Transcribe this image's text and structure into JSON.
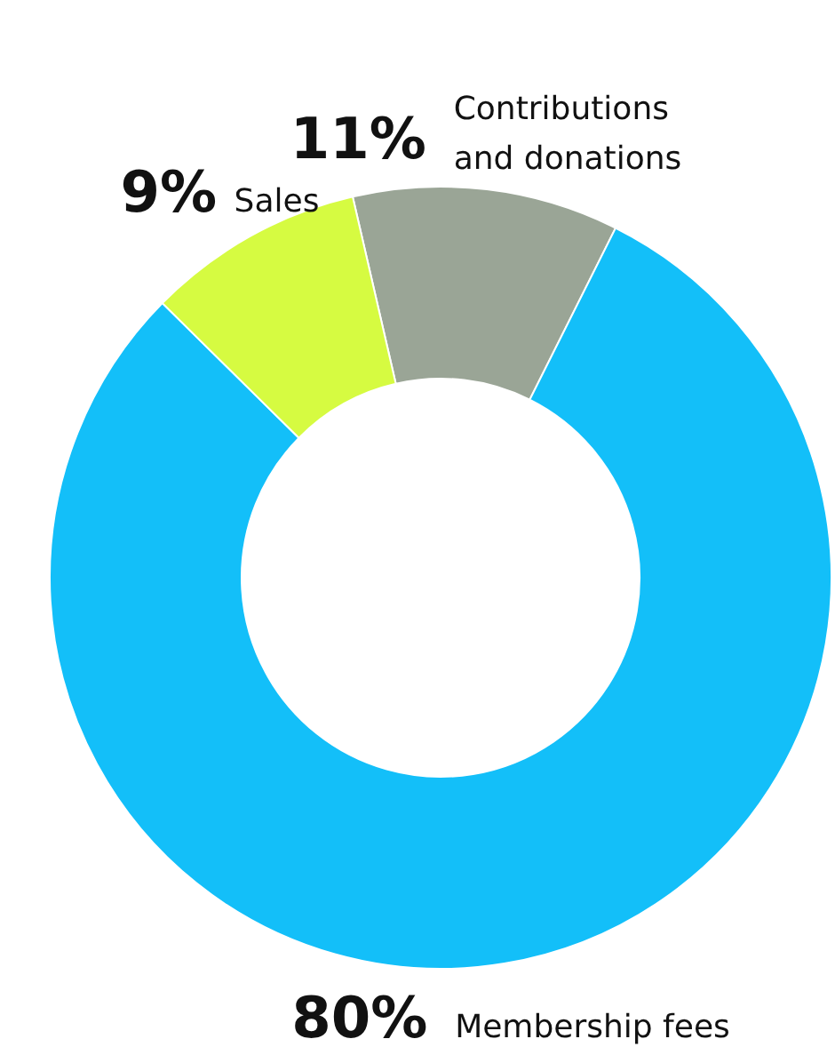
{
  "chart_data": {
    "type": "donut",
    "categories": [
      "Contributions and donations",
      "Membership fees",
      "Sales"
    ],
    "values": [
      11,
      80,
      9
    ],
    "value_labels": [
      "11%",
      "80%",
      "9%"
    ],
    "colors": [
      "#9aa596",
      "#13bff9",
      "#d6fb41"
    ],
    "legend": false
  }
}
